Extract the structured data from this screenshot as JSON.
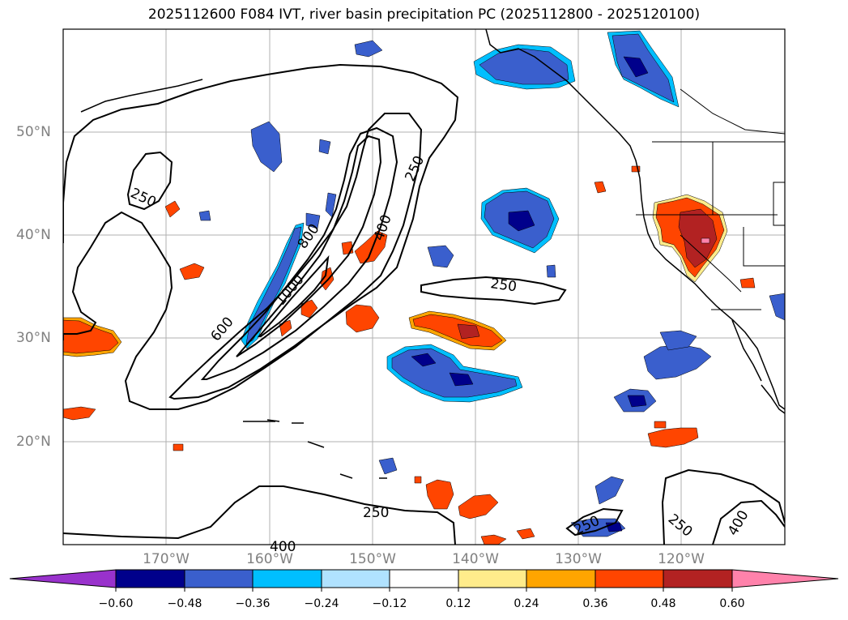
{
  "title": "2025112600 F084 IVT, river basin precipitation PC (2025112800 - 2025120100)",
  "lat_labels": [
    "50°N",
    "40°N",
    "30°N",
    "20°N"
  ],
  "lon_labels": [
    "170°W",
    "160°W",
    "150°W",
    "140°W",
    "130°W",
    "120°W"
  ],
  "colorbar": {
    "ticks": [
      "−0.60",
      "−0.48",
      "−0.36",
      "−0.24",
      "−0.12",
      "0.12",
      "0.24",
      "0.36",
      "0.48",
      "0.60"
    ],
    "colors": [
      "#9932CC",
      "#00008B",
      "#3A5FCD",
      "#00BFFF",
      "#B0E2FF",
      "#FFFFFF",
      "#FFEC8B",
      "#FFA500",
      "#FF4500",
      "#B22222",
      "#FF82AB"
    ]
  },
  "contour_labels": [
    "250",
    "250",
    "250",
    "250",
    "250",
    "250",
    "400",
    "400",
    "400",
    "600",
    "800",
    "1000"
  ]
}
